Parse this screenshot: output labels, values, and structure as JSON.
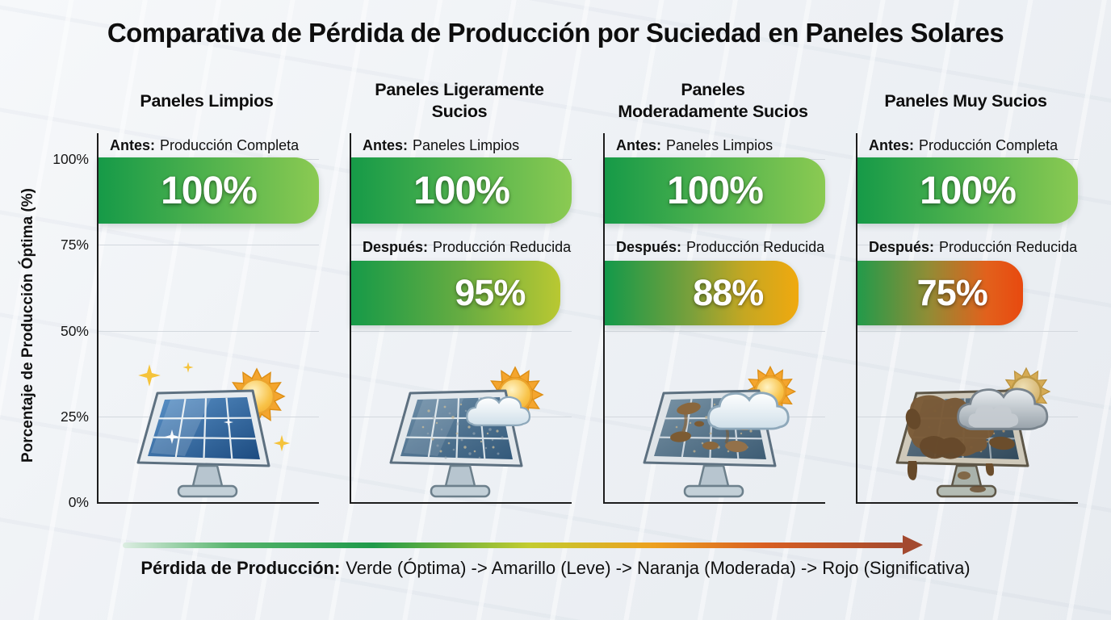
{
  "title": "Comparativa de Pérdida de Producción por Suciedad en Paneles Solares",
  "y_axis": {
    "label": "Porcentaje de Producción Óptima (%)",
    "ticks": [
      "100%",
      "75%",
      "50%",
      "25%",
      "0%"
    ]
  },
  "columns": [
    {
      "title": "Paneles Limpios",
      "antes_prefix": "Antes:",
      "antes_text": "Producción Completa",
      "antes_value": "100%",
      "antes_pct": 100,
      "antes_colors": [
        "#169a48",
        "#8bca52"
      ],
      "illustration": "clean-solar-panel-sun-sparkles"
    },
    {
      "title": "Paneles Ligeramente\nSucios",
      "antes_prefix": "Antes:",
      "antes_text": "Paneles Limpios",
      "antes_value": "100%",
      "antes_pct": 100,
      "antes_colors": [
        "#169a48",
        "#8bca52"
      ],
      "despues_prefix": "Después:",
      "despues_text": "Producción Reducida",
      "despues_value": "95%",
      "despues_pct": 95,
      "despues_colors": [
        "#169a48 0%",
        "#6aad41 55%",
        "#b9c832 100%"
      ],
      "illustration": "lightly-dirty-solar-panel-sun-small-cloud"
    },
    {
      "title": "Paneles\nModeradamente Sucios",
      "antes_prefix": "Antes:",
      "antes_text": "Paneles Limpios",
      "antes_value": "100%",
      "antes_pct": 100,
      "antes_colors": [
        "#169a48",
        "#8bca52"
      ],
      "despues_prefix": "Después:",
      "despues_text": "Producción Reducida",
      "despues_value": "88%",
      "despues_pct": 88,
      "despues_colors": [
        "#13994a 0%",
        "#7ba03b 45%",
        "#c5a722 72%",
        "#f0a90f 100%"
      ],
      "illustration": "moderately-dirty-solar-panel-sun-cloud"
    },
    {
      "title": "Paneles Muy Sucios",
      "antes_prefix": "Antes:",
      "antes_text": "Producción Completa",
      "antes_value": "100%",
      "antes_pct": 100,
      "antes_colors": [
        "#169a48",
        "#8bca52"
      ],
      "despues_prefix": "Después:",
      "despues_text": "Producción Reducida",
      "despues_value": "75%",
      "despues_pct": 75,
      "despues_colors": [
        "#229a4a 0%",
        "#8f8d36 42%",
        "#e2611c 78%",
        "#e8490f 100%"
      ],
      "illustration": "very-dirty-solar-panel-gray-cloud"
    }
  ],
  "legend": {
    "prefix": "Pérdida de Producción:",
    "text": "Verde (Óptima) -> Amarillo (Leve) -> Naranja (Moderada) -> Rojo (Significativa)"
  },
  "arrow": {
    "stops": [
      "#dcede2 0%",
      "#56b46c 14%",
      "#1f9a4a 32%",
      "#c3cc2f 52%",
      "#eda01f 68%",
      "#d95f22 82%",
      "#a3492f 100%"
    ],
    "head_color": "#a3492f"
  },
  "chart_data": {
    "type": "bar",
    "title": "Comparativa de Pérdida de Producción por Suciedad en Paneles Solares",
    "categories": [
      "Paneles Limpios",
      "Paneles Ligeramente Sucios",
      "Paneles Moderadamente Sucios",
      "Paneles Muy Sucios"
    ],
    "series": [
      {
        "name": "Antes",
        "values": [
          100,
          100,
          100,
          100
        ],
        "annotations": [
          "Producción Completa",
          "Paneles Limpios",
          "Paneles Limpios",
          "Producción Completa"
        ]
      },
      {
        "name": "Después",
        "values": [
          null,
          95,
          88,
          75
        ],
        "annotations": [
          null,
          "Producción Reducida",
          "Producción Reducida",
          "Producción Reducida"
        ]
      }
    ],
    "xlabel": "",
    "ylabel": "Porcentaje de Producción Óptima (%)",
    "ylim": [
      0,
      100
    ],
    "yticks": [
      0,
      25,
      50,
      75,
      100
    ],
    "grid": true,
    "legend_note": "Pérdida de Producción: Verde (Óptima) -> Amarillo (Leve) -> Naranja (Moderada) -> Rojo (Significativa)",
    "color_scale": {
      "green": "Óptima",
      "yellow": "Leve",
      "orange": "Moderada",
      "red": "Significativa"
    }
  }
}
